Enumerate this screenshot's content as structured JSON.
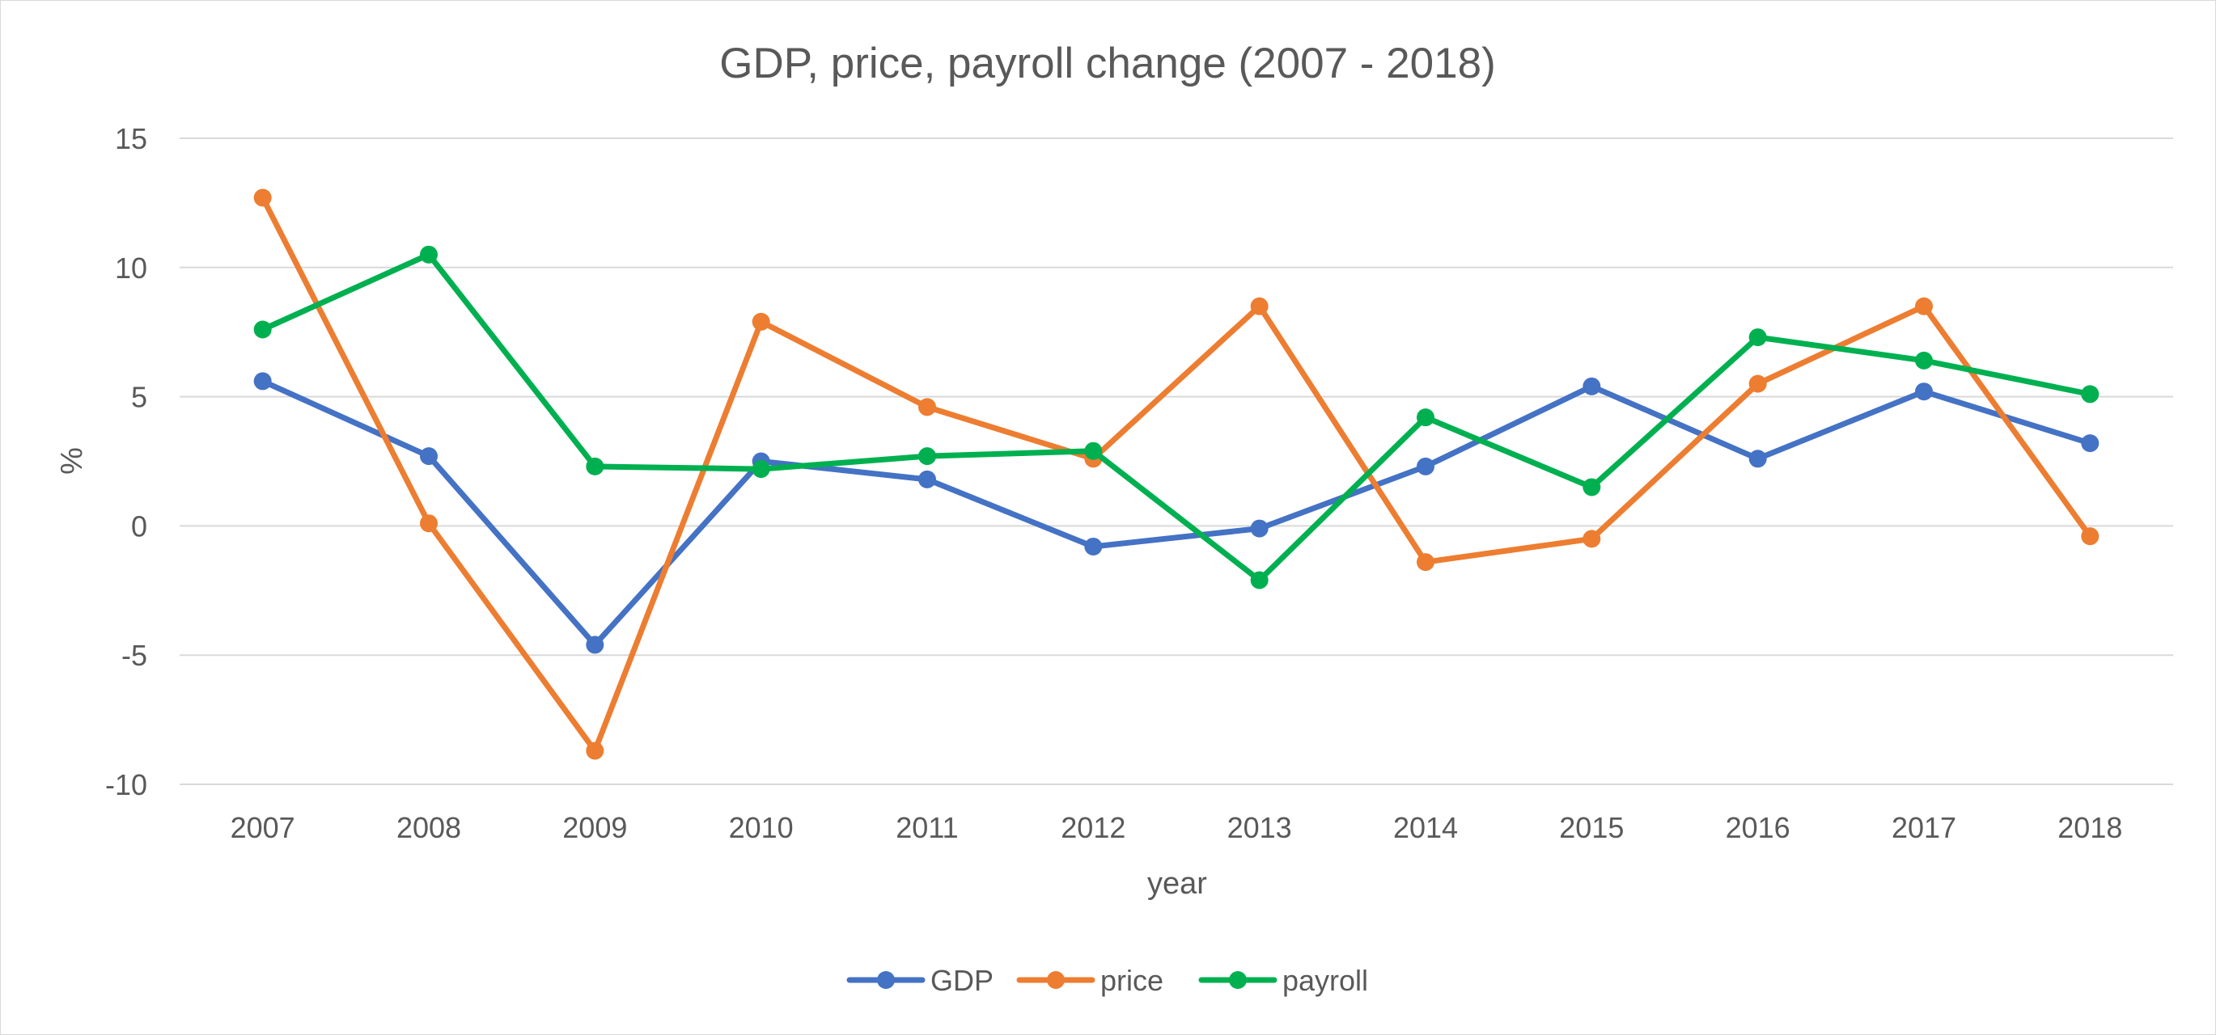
{
  "chart_data": {
    "type": "line",
    "title": "GDP, price, payroll change (2007 - 2018)",
    "xlabel": "year",
    "ylabel": "%",
    "categories": [
      "2007",
      "2008",
      "2009",
      "2010",
      "2011",
      "2012",
      "2013",
      "2014",
      "2015",
      "2016",
      "2017",
      "2018"
    ],
    "ylim": [
      -10,
      15
    ],
    "yticks": [
      15,
      10,
      5,
      0,
      -5,
      -10
    ],
    "grid": true,
    "legend_position": "bottom",
    "series": [
      {
        "name": "GDP",
        "color": "#4472c4",
        "values": [
          5.6,
          2.7,
          -4.6,
          2.5,
          1.8,
          -0.8,
          -0.1,
          2.3,
          5.4,
          2.6,
          5.2,
          3.2
        ]
      },
      {
        "name": "price",
        "color": "#ed7d31",
        "values": [
          12.7,
          0.1,
          -8.7,
          7.9,
          4.6,
          2.6,
          8.5,
          -1.4,
          -0.5,
          5.5,
          8.5,
          -0.4
        ]
      },
      {
        "name": "payroll",
        "color": "#00b050",
        "values": [
          7.6,
          10.5,
          2.3,
          2.2,
          2.7,
          2.9,
          -2.1,
          4.2,
          1.5,
          7.3,
          6.4,
          5.1
        ]
      }
    ]
  }
}
